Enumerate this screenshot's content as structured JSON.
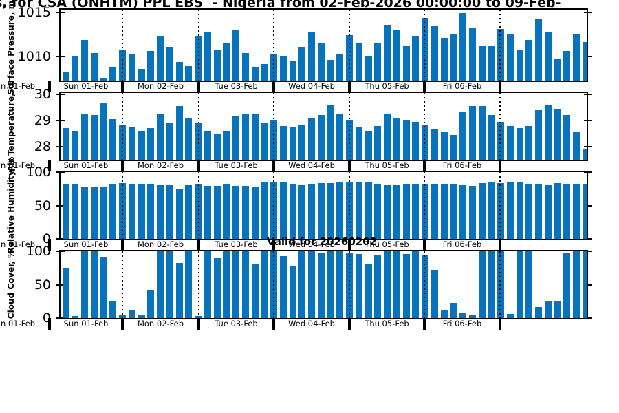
{
  "title": "s, for CSA (ONHTM) PPL EBS  - Nigeria from 02-Feb-2026 00:00:00 to 09-Feb-",
  "annotation": {
    "valid_for": "Valid for 20260202"
  },
  "colors": {
    "bar": "#0773bc",
    "axis": "#000000"
  },
  "x_axis": {
    "clipped_left_label": "n 01-Feb",
    "day_labels": [
      "Sun 01-Feb",
      "Mon 02-Feb",
      "Tue 03-Feb",
      "Wed 04-Feb",
      "Thu 05-Feb",
      "Fri 06-Feb"
    ]
  },
  "chart_data": [
    {
      "type": "bar",
      "ylabel": "Surface Pressure, mb",
      "yticks": [
        1015,
        1010
      ],
      "ylim": [
        1007.25,
        1015.3
      ],
      "grid": "vertical dotted lines at day boundaries",
      "values": [
        1008.2,
        1010.0,
        1011.9,
        1010.4,
        1007.6,
        1008.8,
        1010.8,
        1010.2,
        1008.6,
        1010.6,
        1012.3,
        1011.0,
        1009.4,
        1008.9,
        1012.3,
        1012.8,
        1010.7,
        1011.5,
        1013.0,
        1010.4,
        1008.7,
        1009.1,
        1010.3,
        1010.0,
        1009.5,
        1011.1,
        1012.8,
        1011.5,
        1009.6,
        1010.2,
        1012.4,
        1011.5,
        1010.1,
        1011.5,
        1013.5,
        1013.0,
        1011.2,
        1012.3,
        1014.4,
        1013.4,
        1012.1,
        1012.5,
        1014.9,
        1013.3,
        1011.2,
        1011.2,
        1013.1,
        1012.6,
        1010.8,
        1011.9,
        1014.2,
        1012.8,
        1009.7,
        1010.6,
        1012.5,
        1011.6
      ]
    },
    {
      "type": "bar",
      "ylabel": "Air Temperature, °C",
      "yticks": [
        30,
        29,
        28
      ],
      "ylim": [
        27.5,
        30.05
      ],
      "grid": "vertical dotted lines at day boundaries",
      "values": [
        28.7,
        28.6,
        29.25,
        29.2,
        29.65,
        29.05,
        28.85,
        28.75,
        28.6,
        28.7,
        29.25,
        28.9,
        29.55,
        29.1,
        28.9,
        28.6,
        28.5,
        28.6,
        29.15,
        29.25,
        29.25,
        28.9,
        29.0,
        28.8,
        28.75,
        28.85,
        29.1,
        29.2,
        29.6,
        29.25,
        29.0,
        28.75,
        28.6,
        28.8,
        29.25,
        29.1,
        29.0,
        28.95,
        28.85,
        28.65,
        28.55,
        28.45,
        29.35,
        29.55,
        29.55,
        29.2,
        28.95,
        28.8,
        28.7,
        28.8,
        29.4,
        29.6,
        29.45,
        29.2,
        28.55,
        27.9
      ]
    },
    {
      "type": "bar",
      "ylabel": "Relative Humidity, %",
      "yticks": [
        100,
        50,
        0
      ],
      "ylim": [
        0,
        100
      ],
      "grid": "vertical dotted lines at day boundaries",
      "values": [
        83,
        83,
        78,
        78,
        77,
        82,
        84,
        82,
        82,
        82,
        80,
        80,
        74,
        80,
        82,
        79,
        79,
        82,
        79,
        79,
        78,
        85,
        86,
        85,
        83,
        80,
        82,
        84,
        84,
        85,
        85,
        85,
        86,
        82,
        80,
        80,
        81,
        82,
        82,
        82,
        82,
        81,
        80,
        79,
        84,
        86,
        84,
        85,
        85,
        83,
        81,
        80,
        84,
        83,
        83,
        83
      ]
    },
    {
      "type": "bar",
      "ylabel": "Cloud Cover, %",
      "yticks": [
        100,
        50,
        0
      ],
      "ylim": [
        0,
        100
      ],
      "grid": "vertical dotted lines at day boundaries",
      "values": [
        75,
        3,
        100,
        100,
        92,
        26,
        4,
        12,
        4,
        41,
        100,
        100,
        83,
        100,
        3,
        100,
        90,
        100,
        100,
        100,
        80,
        100,
        100,
        93,
        77,
        100,
        100,
        98,
        100,
        100,
        97,
        96,
        80,
        95,
        100,
        100,
        96,
        100,
        95,
        72,
        11,
        23,
        8,
        4,
        100,
        100,
        100,
        6,
        100,
        100,
        17,
        25,
        25,
        98,
        100,
        100
      ]
    }
  ]
}
